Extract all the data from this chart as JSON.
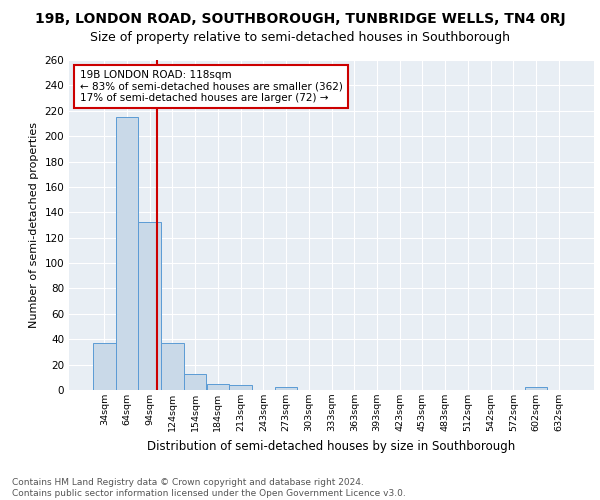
{
  "title1": "19B, LONDON ROAD, SOUTHBOROUGH, TUNBRIDGE WELLS, TN4 0RJ",
  "title2": "Size of property relative to semi-detached houses in Southborough",
  "xlabel": "Distribution of semi-detached houses by size in Southborough",
  "ylabel": "Number of semi-detached properties",
  "footnote": "Contains HM Land Registry data © Crown copyright and database right 2024.\nContains public sector information licensed under the Open Government Licence v3.0.",
  "bin_labels": [
    "34sqm",
    "64sqm",
    "94sqm",
    "124sqm",
    "154sqm",
    "184sqm",
    "213sqm",
    "243sqm",
    "273sqm",
    "303sqm",
    "333sqm",
    "363sqm",
    "393sqm",
    "423sqm",
    "453sqm",
    "483sqm",
    "512sqm",
    "542sqm",
    "572sqm",
    "602sqm",
    "632sqm"
  ],
  "bar_heights": [
    37,
    215,
    132,
    37,
    13,
    5,
    4,
    0,
    2,
    0,
    0,
    0,
    0,
    0,
    0,
    0,
    0,
    0,
    0,
    2,
    0
  ],
  "bar_color": "#c9d9e8",
  "bar_edge_color": "#5b9bd5",
  "vline_color": "#cc0000",
  "annotation_text": "19B LONDON ROAD: 118sqm\n← 83% of semi-detached houses are smaller (362)\n17% of semi-detached houses are larger (72) →",
  "annotation_box_color": "white",
  "annotation_box_edge": "#cc0000",
  "ylim": [
    0,
    260
  ],
  "yticks": [
    0,
    20,
    40,
    60,
    80,
    100,
    120,
    140,
    160,
    180,
    200,
    220,
    240,
    260
  ],
  "background_color": "#e8eef4",
  "grid_color": "white",
  "title1_fontsize": 10,
  "title2_fontsize": 9,
  "xlabel_fontsize": 8.5,
  "ylabel_fontsize": 8,
  "footnote_fontsize": 6.5,
  "annotation_fontsize": 7.5
}
